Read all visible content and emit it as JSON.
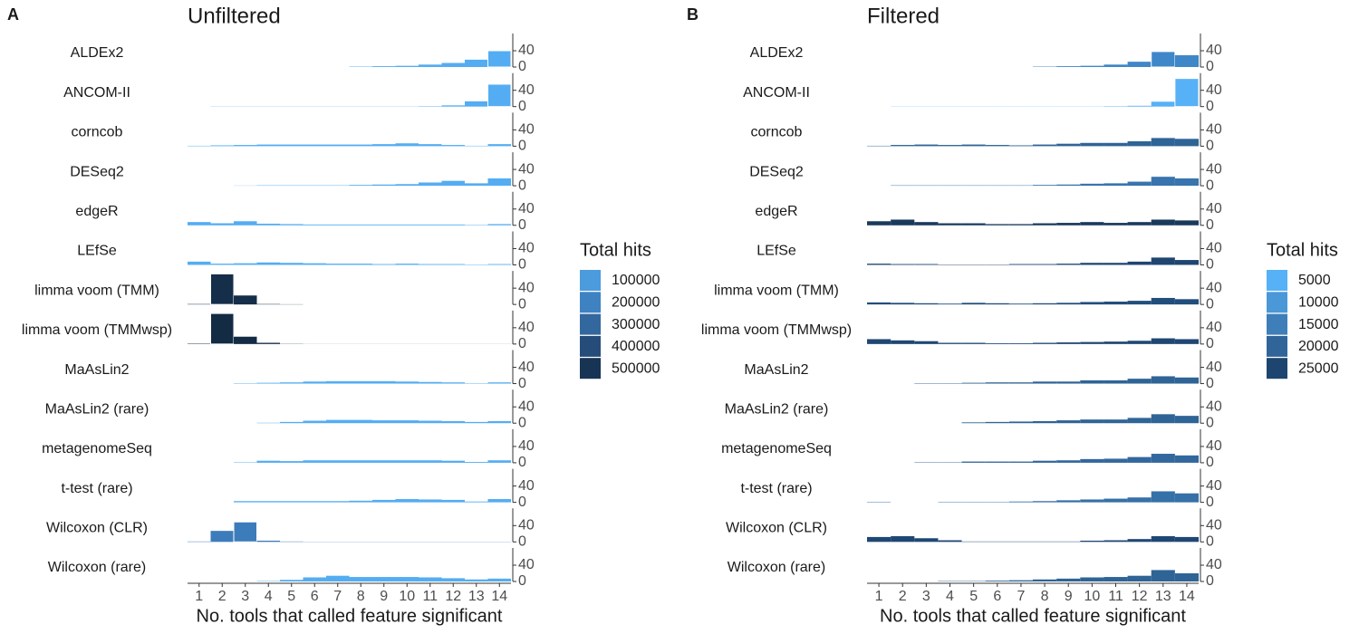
{
  "chart_data": [
    {
      "type": "bar",
      "panel": "A",
      "title": "Unfiltered",
      "x_label": "No. tools that called feature significant",
      "x": [
        1,
        2,
        3,
        4,
        5,
        6,
        7,
        8,
        9,
        10,
        11,
        12,
        13,
        14
      ],
      "xlim": [
        0.5,
        14.5
      ],
      "xticks": [
        1,
        2,
        3,
        4,
        5,
        6,
        7,
        8,
        9,
        10,
        11,
        12,
        13,
        14
      ],
      "ylim": [
        0,
        80
      ],
      "yticks": [
        0,
        40
      ],
      "series": [
        {
          "name": "ALDEx2",
          "color": "#54adf2",
          "values": [
            0,
            0,
            0,
            0,
            0,
            0,
            0,
            1,
            2,
            3,
            6,
            10,
            18,
            40
          ]
        },
        {
          "name": "ANCOM-II",
          "color": "#54adf2",
          "values": [
            0,
            0.5,
            0.5,
            0.5,
            0.5,
            0.5,
            0.5,
            0.5,
            0.5,
            0.5,
            1,
            3,
            13,
            55
          ]
        },
        {
          "name": "corncob",
          "color": "#54adf2",
          "values": [
            1,
            2,
            3,
            4,
            4,
            4,
            4,
            4,
            5,
            7,
            5,
            3,
            1,
            5
          ]
        },
        {
          "name": "DESeq2",
          "color": "#54adf2",
          "values": [
            0,
            0,
            0.5,
            1,
            1,
            1,
            1,
            2,
            3,
            4,
            8,
            12,
            6,
            18
          ]
        },
        {
          "name": "edgeR",
          "color": "#54adf2",
          "values": [
            8,
            5,
            10,
            4,
            3,
            2,
            2,
            2,
            2,
            2,
            2,
            2,
            1,
            3
          ]
        },
        {
          "name": "LEfSe",
          "color": "#54adf2",
          "values": [
            8,
            3,
            4,
            6,
            5,
            4,
            3,
            3,
            2,
            3,
            2,
            2,
            1,
            2
          ]
        },
        {
          "name": "limma voom (TMM)",
          "color": "#152e49",
          "values": [
            1,
            75,
            22,
            1,
            0.5,
            0,
            0,
            0,
            0,
            0,
            0,
            0,
            0,
            0
          ]
        },
        {
          "name": "limma voom (TMMwsp)",
          "color": "#132b43",
          "values": [
            1,
            75,
            18,
            3,
            0.5,
            0.2,
            0.2,
            0.2,
            0.2,
            0.2,
            0.2,
            0.2,
            0.2,
            0.2
          ]
        },
        {
          "name": "MaAsLin2",
          "color": "#54adf2",
          "values": [
            0,
            0,
            1,
            2,
            3,
            5,
            6,
            6,
            6,
            5,
            4,
            3,
            1,
            3
          ]
        },
        {
          "name": "MaAsLin2 (rare)",
          "color": "#54adf2",
          "values": [
            0,
            0,
            0,
            1,
            3,
            6,
            8,
            8,
            7,
            7,
            6,
            5,
            3,
            5
          ]
        },
        {
          "name": "metagenomeSeq",
          "color": "#54adf2",
          "values": [
            0,
            0,
            1,
            5,
            4,
            6,
            6,
            6,
            6,
            6,
            6,
            5,
            2,
            6
          ]
        },
        {
          "name": "t-test (rare)",
          "color": "#54adf2",
          "values": [
            0,
            0,
            3,
            3,
            3,
            3,
            3,
            4,
            6,
            8,
            7,
            6,
            2,
            8
          ]
        },
        {
          "name": "Wilcoxon (CLR)",
          "color": "#3d7cba",
          "values": [
            1,
            27,
            49,
            3,
            1,
            0.5,
            0.5,
            0.5,
            0.5,
            0.5,
            0.5,
            0.5,
            0.5,
            0.5
          ]
        },
        {
          "name": "Wilcoxon (rare)",
          "color": "#54adf2",
          "values": [
            0,
            0,
            0,
            1,
            4,
            10,
            14,
            11,
            11,
            11,
            10,
            8,
            5,
            7
          ]
        }
      ],
      "legend": {
        "title": "Total hits",
        "entries": [
          {
            "value": 100000,
            "color": "#4b9bdd"
          },
          {
            "value": 200000,
            "color": "#3f82c1"
          },
          {
            "value": 300000,
            "color": "#33689e"
          },
          {
            "value": 400000,
            "color": "#264d7a"
          },
          {
            "value": 500000,
            "color": "#183455"
          }
        ]
      }
    },
    {
      "type": "bar",
      "panel": "B",
      "title": "Filtered",
      "x_label": "No. tools that called feature significant",
      "x": [
        1,
        2,
        3,
        4,
        5,
        6,
        7,
        8,
        9,
        10,
        11,
        12,
        13,
        14
      ],
      "xlim": [
        0.5,
        14.5
      ],
      "xticks": [
        1,
        2,
        3,
        4,
        5,
        6,
        7,
        8,
        9,
        10,
        11,
        12,
        13,
        14
      ],
      "ylim": [
        0,
        80
      ],
      "yticks": [
        0,
        40
      ],
      "series": [
        {
          "name": "ALDEx2",
          "color": "#3f87c8",
          "values": [
            0,
            0,
            0,
            0,
            0,
            0,
            0,
            1,
            2,
            3,
            6,
            13,
            38,
            29
          ]
        },
        {
          "name": "ANCOM-II",
          "color": "#56b1f7",
          "values": [
            0,
            0.5,
            0.5,
            0.5,
            0.5,
            0.5,
            0.5,
            0.5,
            0.5,
            0.5,
            1,
            2,
            12,
            69
          ]
        },
        {
          "name": "corncob",
          "color": "#2f6496",
          "values": [
            1,
            3,
            4,
            3,
            4,
            3,
            2,
            4,
            6,
            8,
            8,
            12,
            20,
            18
          ]
        },
        {
          "name": "DESeq2",
          "color": "#3874ae",
          "values": [
            0,
            1,
            1,
            1,
            1,
            1,
            1,
            2,
            3,
            5,
            6,
            10,
            22,
            18
          ]
        },
        {
          "name": "edgeR",
          "color": "#1a3a5c",
          "values": [
            10,
            14,
            8,
            5,
            5,
            3,
            3,
            5,
            6,
            8,
            6,
            8,
            14,
            12
          ]
        },
        {
          "name": "LEfSe",
          "color": "#1e4670",
          "values": [
            3,
            2,
            2,
            1,
            1,
            1,
            2,
            2,
            3,
            5,
            5,
            8,
            18,
            12
          ]
        },
        {
          "name": "limma voom (TMM)",
          "color": "#224e7c",
          "values": [
            5,
            4,
            3,
            2,
            4,
            3,
            2,
            3,
            4,
            6,
            7,
            9,
            16,
            13
          ]
        },
        {
          "name": "limma voom (TMMwsp)",
          "color": "#1f4773",
          "values": [
            12,
            9,
            7,
            3,
            3,
            2,
            2,
            3,
            4,
            5,
            6,
            8,
            14,
            12
          ]
        },
        {
          "name": "MaAsLin2",
          "color": "#2f6496",
          "values": [
            0,
            0,
            1,
            1,
            2,
            3,
            3,
            5,
            5,
            8,
            8,
            12,
            18,
            15
          ]
        },
        {
          "name": "MaAsLin2 (rare)",
          "color": "#2f6496",
          "values": [
            0,
            0,
            0,
            0,
            2,
            3,
            4,
            5,
            7,
            9,
            9,
            13,
            22,
            18
          ]
        },
        {
          "name": "metagenomeSeq",
          "color": "#33689e",
          "values": [
            0,
            0,
            1,
            1,
            3,
            3,
            3,
            5,
            6,
            9,
            10,
            14,
            22,
            18
          ]
        },
        {
          "name": "t-test (rare)",
          "color": "#3670a8",
          "values": [
            1,
            0,
            0,
            1,
            1,
            1,
            2,
            3,
            5,
            7,
            9,
            12,
            27,
            22
          ]
        },
        {
          "name": "Wilcoxon (CLR)",
          "color": "#1f4773",
          "values": [
            12,
            14,
            9,
            4,
            1,
            1,
            1,
            1,
            1,
            3,
            4,
            7,
            14,
            12
          ]
        },
        {
          "name": "Wilcoxon (rare)",
          "color": "#2f6496",
          "values": [
            0,
            0,
            0,
            1,
            1,
            2,
            3,
            5,
            7,
            10,
            11,
            14,
            28,
            20
          ]
        }
      ],
      "legend": {
        "title": "Total hits",
        "entries": [
          {
            "value": 5000,
            "color": "#56b1f7"
          },
          {
            "value": 10000,
            "color": "#4a98d8"
          },
          {
            "value": 15000,
            "color": "#3e7fb9"
          },
          {
            "value": 20000,
            "color": "#31659a"
          },
          {
            "value": 25000,
            "color": "#1e4570"
          }
        ]
      }
    }
  ]
}
